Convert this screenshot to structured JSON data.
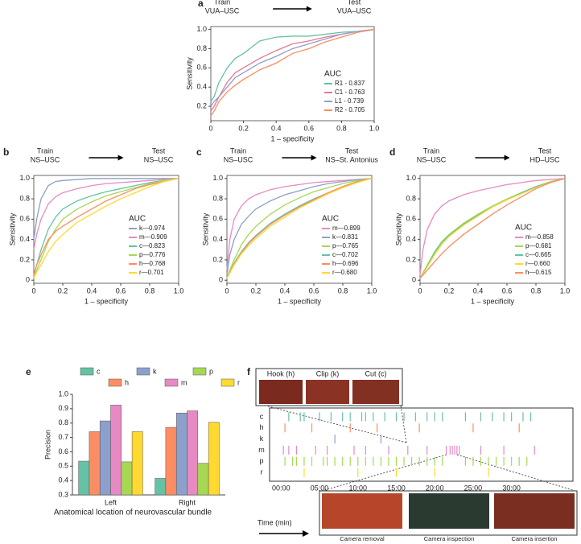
{
  "chart_data": [
    {
      "type": "roc",
      "panel": "a",
      "train_title": "Train",
      "train_dataset": "VUA–USC",
      "test_title": "Test",
      "test_dataset": "VUA–USC",
      "xlabel": "1 – specificity",
      "ylabel": "Sensitivity",
      "legend_title": "AUC",
      "xlim": [
        0,
        1
      ],
      "ylim": [
        0.05,
        1.03
      ],
      "xticks": [
        0,
        0.2,
        0.4,
        0.6,
        0.8,
        {
          "value": 1,
          "label": "1.0"
        }
      ],
      "yticks": [
        0.2,
        0.4,
        0.6,
        0.8,
        {
          "value": 1,
          "label": "1.0"
        }
      ],
      "x": [
        0,
        0.02,
        0.05,
        0.1,
        0.15,
        0.2,
        0.3,
        0.4,
        0.5,
        0.6,
        0.7,
        0.8,
        0.9,
        1
      ],
      "series": [
        {
          "name": "R1 - 0.837",
          "color": "#66c2a5",
          "values": [
            0.25,
            0.3,
            0.45,
            0.6,
            0.7,
            0.75,
            0.88,
            0.92,
            0.93,
            0.93,
            0.95,
            0.97,
            0.98,
            1
          ]
        },
        {
          "name": "C1 - 0.763",
          "color": "#e7788f",
          "values": [
            0.15,
            0.2,
            0.3,
            0.45,
            0.55,
            0.6,
            0.7,
            0.78,
            0.85,
            0.88,
            0.92,
            0.95,
            0.98,
            1
          ]
        },
        {
          "name": "L1 - 0.739",
          "color": "#8da0cb",
          "values": [
            0.2,
            0.25,
            0.3,
            0.4,
            0.5,
            0.55,
            0.65,
            0.72,
            0.8,
            0.85,
            0.9,
            0.95,
            0.98,
            1
          ]
        },
        {
          "name": "R2 - 0.705",
          "color": "#fc8d62",
          "values": [
            0.1,
            0.15,
            0.25,
            0.35,
            0.42,
            0.48,
            0.58,
            0.65,
            0.75,
            0.8,
            0.87,
            0.92,
            0.97,
            1
          ]
        }
      ]
    },
    {
      "type": "roc",
      "panel": "b",
      "train_title": "Train",
      "train_dataset": "NS–USC",
      "test_title": "Test",
      "test_dataset": "NS–USC",
      "xlabel": "1 – specificity",
      "ylabel": "Sensitivity",
      "legend_title": "AUC",
      "xlim": [
        0,
        1
      ],
      "ylim": [
        -0.03,
        1.03
      ],
      "xticks": [
        0,
        0.2,
        0.4,
        0.6,
        0.8,
        {
          "value": 1,
          "label": "1.0"
        }
      ],
      "yticks": [
        0,
        0.2,
        0.4,
        0.6,
        0.8,
        {
          "value": 1,
          "label": "1.0"
        }
      ],
      "x": [
        0,
        0.02,
        0.05,
        0.1,
        0.15,
        0.2,
        0.3,
        0.4,
        0.5,
        0.6,
        0.7,
        0.8,
        0.9,
        1
      ],
      "series": [
        {
          "name": "k—0.974",
          "color": "#8da0cb",
          "values": [
            0.4,
            0.6,
            0.8,
            0.93,
            0.97,
            0.98,
            0.99,
            1,
            1,
            1,
            1,
            1,
            1,
            1
          ]
        },
        {
          "name": "m—0.909",
          "color": "#e78ac3",
          "values": [
            0.3,
            0.45,
            0.6,
            0.75,
            0.82,
            0.86,
            0.9,
            0.93,
            0.95,
            0.96,
            0.97,
            0.98,
            0.99,
            1
          ]
        },
        {
          "name": "c—0.823",
          "color": "#66c2a5",
          "values": [
            0.05,
            0.15,
            0.3,
            0.5,
            0.62,
            0.7,
            0.78,
            0.83,
            0.87,
            0.9,
            0.93,
            0.96,
            0.98,
            1
          ]
        },
        {
          "name": "p—0.776",
          "color": "#a6d854",
          "values": [
            0.03,
            0.1,
            0.2,
            0.38,
            0.5,
            0.6,
            0.7,
            0.77,
            0.83,
            0.87,
            0.91,
            0.95,
            0.98,
            1
          ]
        },
        {
          "name": "h—0.768",
          "color": "#fc8d62",
          "values": [
            0.05,
            0.15,
            0.25,
            0.4,
            0.48,
            0.53,
            0.62,
            0.7,
            0.78,
            0.84,
            0.9,
            0.94,
            0.97,
            1
          ]
        },
        {
          "name": "r—0.701",
          "color": "#ffd92f",
          "values": [
            0.02,
            0.08,
            0.15,
            0.28,
            0.38,
            0.45,
            0.57,
            0.65,
            0.73,
            0.8,
            0.86,
            0.92,
            0.97,
            1
          ]
        }
      ]
    },
    {
      "type": "roc",
      "panel": "c",
      "train_title": "Train",
      "train_dataset": "NS–USC",
      "test_title": "Test",
      "test_dataset": "NS–St. Antonius",
      "xlabel": "1 – specificity",
      "ylabel": "Sensitivity",
      "legend_title": "AUC",
      "xlim": [
        0,
        1
      ],
      "ylim": [
        -0.03,
        1.03
      ],
      "xticks": [
        0,
        0.2,
        0.4,
        0.6,
        0.8,
        {
          "value": 1,
          "label": "1.0"
        }
      ],
      "yticks": [
        0,
        0.2,
        0.4,
        0.6,
        0.8,
        {
          "value": 1,
          "label": "1.0"
        }
      ],
      "x": [
        0,
        0.02,
        0.05,
        0.1,
        0.15,
        0.2,
        0.3,
        0.4,
        0.5,
        0.6,
        0.7,
        0.8,
        0.9,
        1
      ],
      "series": [
        {
          "name": "m—0.899",
          "color": "#e78ac3",
          "values": [
            0.1,
            0.4,
            0.6,
            0.73,
            0.8,
            0.84,
            0.89,
            0.92,
            0.94,
            0.96,
            0.97,
            0.98,
            0.99,
            1
          ]
        },
        {
          "name": "k—0.831",
          "color": "#8da0cb",
          "values": [
            0.05,
            0.25,
            0.4,
            0.55,
            0.63,
            0.7,
            0.78,
            0.84,
            0.88,
            0.92,
            0.95,
            0.97,
            0.99,
            1
          ]
        },
        {
          "name": "p—0.765",
          "color": "#a6d854",
          "values": [
            0.02,
            0.1,
            0.2,
            0.35,
            0.45,
            0.53,
            0.65,
            0.74,
            0.81,
            0.87,
            0.91,
            0.95,
            0.98,
            1
          ]
        },
        {
          "name": "c—0.702",
          "color": "#66c2a5",
          "values": [
            0.02,
            0.08,
            0.17,
            0.28,
            0.37,
            0.44,
            0.56,
            0.65,
            0.73,
            0.8,
            0.86,
            0.92,
            0.97,
            1
          ]
        },
        {
          "name": "h—0.696",
          "color": "#fc8d62",
          "values": [
            0.02,
            0.08,
            0.16,
            0.27,
            0.36,
            0.43,
            0.55,
            0.64,
            0.72,
            0.79,
            0.86,
            0.92,
            0.97,
            1
          ]
        },
        {
          "name": "r—0.680",
          "color": "#ffd92f",
          "values": [
            0.02,
            0.07,
            0.15,
            0.26,
            0.34,
            0.41,
            0.53,
            0.62,
            0.71,
            0.78,
            0.85,
            0.91,
            0.96,
            1
          ]
        }
      ]
    },
    {
      "type": "roc",
      "panel": "d",
      "train_title": "Train",
      "train_dataset": "NS–USC",
      "test_title": "Test",
      "test_dataset": "HD–USC",
      "xlabel": "1 – specificity",
      "ylabel": "Sensitivity",
      "legend_title": "AUC",
      "xlim": [
        0,
        1
      ],
      "ylim": [
        -0.03,
        1.03
      ],
      "xticks": [
        0,
        0.2,
        0.4,
        0.6,
        0.8,
        {
          "value": 1,
          "label": "1.0"
        }
      ],
      "yticks": [
        0,
        0.2,
        0.4,
        0.6,
        0.8,
        {
          "value": 1,
          "label": "1.0"
        }
      ],
      "x": [
        0,
        0.02,
        0.05,
        0.1,
        0.15,
        0.2,
        0.3,
        0.4,
        0.5,
        0.6,
        0.7,
        0.8,
        0.9,
        1
      ],
      "series": [
        {
          "name": "m—0.858",
          "color": "#e78ac3",
          "values": [
            0.05,
            0.3,
            0.5,
            0.65,
            0.73,
            0.78,
            0.84,
            0.88,
            0.91,
            0.94,
            0.96,
            0.98,
            0.99,
            1
          ]
        },
        {
          "name": "p—0.681",
          "color": "#a6d854",
          "values": [
            0.02,
            0.07,
            0.15,
            0.28,
            0.38,
            0.45,
            0.56,
            0.65,
            0.73,
            0.8,
            0.86,
            0.92,
            0.97,
            1
          ]
        },
        {
          "name": "c—0.665",
          "color": "#66c2a5",
          "values": [
            0.02,
            0.07,
            0.14,
            0.27,
            0.37,
            0.44,
            0.55,
            0.64,
            0.72,
            0.79,
            0.86,
            0.92,
            0.96,
            1
          ]
        },
        {
          "name": "r—0.660",
          "color": "#ffd92f",
          "values": [
            0.02,
            0.06,
            0.13,
            0.25,
            0.35,
            0.43,
            0.54,
            0.63,
            0.72,
            0.79,
            0.85,
            0.91,
            0.96,
            1
          ]
        },
        {
          "name": "h—0.615",
          "color": "#fc8d62",
          "values": [
            0.02,
            0.05,
            0.1,
            0.18,
            0.26,
            0.33,
            0.45,
            0.55,
            0.65,
            0.74,
            0.82,
            0.9,
            0.96,
            1
          ]
        }
      ]
    },
    {
      "type": "bar",
      "panel": "e",
      "ylabel": "Precision",
      "xlabel": "Anatomical location of neurovascular bundle",
      "categories": [
        "Left",
        "Right"
      ],
      "ylim": [
        0.3,
        1.0
      ],
      "yticks": [
        0.3,
        0.4,
        0.5,
        0.6,
        0.7,
        0.8,
        0.9,
        {
          "value": 1,
          "label": "1.0"
        }
      ],
      "series": [
        {
          "name": "c",
          "color": "#66c2a5",
          "values": [
            0.535,
            0.415
          ]
        },
        {
          "name": "h",
          "color": "#fc8d62",
          "values": [
            0.74,
            0.77
          ]
        },
        {
          "name": "k",
          "color": "#8da0cb",
          "values": [
            0.815,
            0.87
          ]
        },
        {
          "name": "m",
          "color": "#e78ac3",
          "values": [
            0.925,
            0.885
          ]
        },
        {
          "name": "p",
          "color": "#a6d854",
          "values": [
            0.53,
            0.52
          ]
        },
        {
          "name": "r",
          "color": "#ffd92f",
          "values": [
            0.74,
            0.805
          ]
        }
      ]
    },
    {
      "type": "timeline",
      "panel": "f",
      "xlabel": "Time (min)",
      "xlim": [
        -1.5,
        38
      ],
      "xticks": [
        {
          "value": 0,
          "label": "00:00"
        },
        {
          "value": 5,
          "label": "05:00"
        },
        {
          "value": 10,
          "label": "10:00"
        },
        {
          "value": 15,
          "label": "15:00"
        },
        {
          "value": 20,
          "label": "20:00"
        },
        {
          "value": 25,
          "label": "25:00"
        },
        {
          "value": 30,
          "label": "30:00"
        }
      ],
      "top_images": [
        "Hook (h)",
        "Clip (k)",
        "Cut (c)"
      ],
      "bottom_images": [
        "Camera removal",
        "Camera inspection",
        "Camera insertion"
      ],
      "rows": [
        {
          "name": "c",
          "color": "#66c2a5",
          "events": [
            1,
            2.5,
            3,
            5,
            6.5,
            8,
            9,
            10.5,
            11,
            12,
            13.5,
            15,
            16,
            17.5,
            19,
            20,
            21,
            24,
            26,
            27.5,
            29,
            30,
            31.5,
            32.5
          ]
        },
        {
          "name": "h",
          "color": "#fc8d62",
          "events": [
            0.5,
            4,
            9,
            12.5,
            18,
            25,
            31
          ]
        },
        {
          "name": "k",
          "color": "#8da0cb",
          "events": [
            7,
            13
          ]
        },
        {
          "name": "m",
          "color": "#e78ac3",
          "events": [
            0.3,
            1,
            2,
            4.5,
            6,
            9.5,
            11,
            14,
            16.5,
            19,
            21.5,
            22,
            22.3,
            22.6,
            22.9,
            23.2,
            26,
            29,
            33
          ]
        },
        {
          "name": "p",
          "color": "#a6d854",
          "events": [
            0.5,
            1.5,
            2,
            3,
            4,
            5.5,
            6,
            7,
            8,
            9,
            10,
            11,
            12,
            13,
            14,
            15,
            16,
            17,
            18,
            19,
            20,
            21,
            24,
            25,
            26,
            27,
            28,
            29,
            30,
            31,
            32
          ]
        },
        {
          "name": "r",
          "color": "#ffd92f",
          "events": [
            3,
            10,
            15,
            20,
            27
          ]
        }
      ]
    }
  ]
}
